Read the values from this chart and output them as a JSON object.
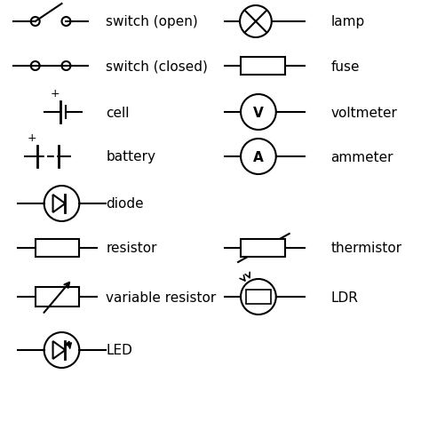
{
  "background_color": "#ffffff",
  "line_color": "#000000",
  "text_color": "#000000",
  "font_size": 11,
  "symbols": [
    {
      "name": "switch (open)",
      "row": 0,
      "col": "left"
    },
    {
      "name": "switch (closed)",
      "row": 1,
      "col": "left"
    },
    {
      "name": "cell",
      "row": 2,
      "col": "left"
    },
    {
      "name": "battery",
      "row": 3,
      "col": "left"
    },
    {
      "name": "diode",
      "row": 4,
      "col": "left"
    },
    {
      "name": "resistor",
      "row": 5,
      "col": "left"
    },
    {
      "name": "variable resistor",
      "row": 6,
      "col": "left"
    },
    {
      "name": "LED",
      "row": 7,
      "col": "left"
    },
    {
      "name": "lamp",
      "row": 0,
      "col": "right"
    },
    {
      "name": "fuse",
      "row": 1,
      "col": "right"
    },
    {
      "name": "voltmeter",
      "row": 2,
      "col": "right"
    },
    {
      "name": "ammeter",
      "row": 3,
      "col": "right"
    },
    {
      "name": "thermistor",
      "row": 5,
      "col": "right"
    },
    {
      "name": "LDR",
      "row": 6,
      "col": "right"
    }
  ]
}
